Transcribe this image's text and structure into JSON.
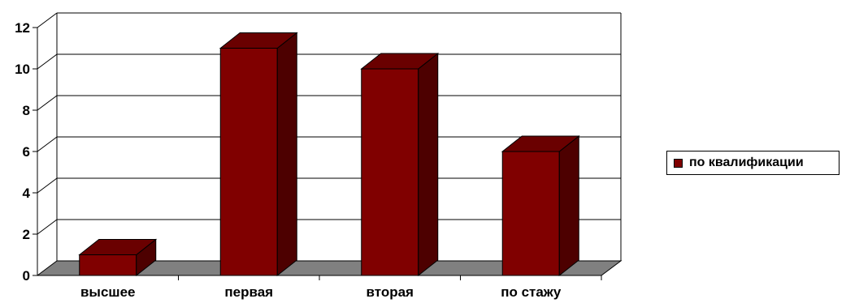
{
  "chart_data": {
    "type": "bar",
    "categories": [
      "высшее",
      "первая",
      "вторая",
      "по стажу"
    ],
    "series": [
      {
        "name": "по квалификации",
        "values": [
          1,
          11,
          10,
          6
        ]
      }
    ],
    "ylim": [
      0,
      12
    ],
    "yticks": [
      "0",
      "2",
      "4",
      "6",
      "8",
      "10",
      "12"
    ],
    "grid": true,
    "legend_position": "right",
    "style": "3d-column",
    "colors": {
      "bar_front": "#800000",
      "bar_top": "#6a0000",
      "bar_side": "#4d0000",
      "floor": "#808080",
      "grid": "#000000"
    }
  }
}
